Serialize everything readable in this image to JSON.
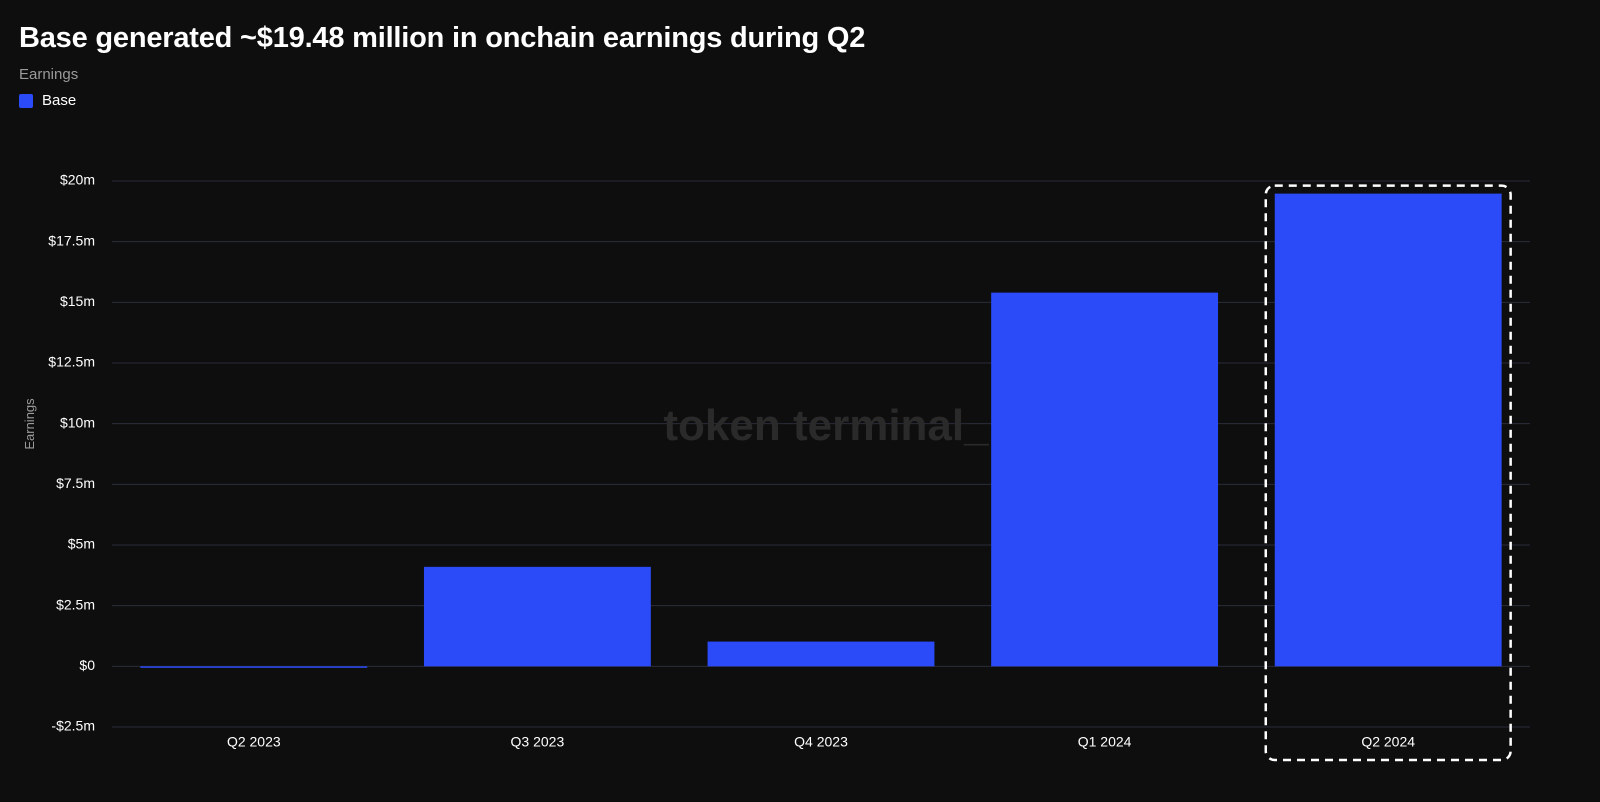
{
  "colors": {
    "background": "#0e0e0e",
    "bar": "#2a4bf7",
    "grid": "#2a2c3a",
    "tick_text": "#ffffff",
    "muted_text": "#9a9a9a",
    "watermark": "#2a2a2a",
    "highlight_box": "#ffffff"
  },
  "watermark": "token terminal_",
  "chart_data": {
    "type": "bar",
    "title": "Base generated ~$19.48 million in onchain earnings during Q2",
    "subtitle": "Earnings",
    "xlabel": "",
    "ylabel": "Earnings",
    "categories": [
      "Q2 2023",
      "Q3 2023",
      "Q4 2023",
      "Q1 2024",
      "Q2 2024"
    ],
    "series": [
      {
        "name": "Base",
        "values": [
          -0.05,
          4.1,
          1.02,
          15.4,
          19.48
        ]
      }
    ],
    "ylim": [
      -2.5,
      20
    ],
    "yticks": [
      {
        "value": 20,
        "label": "$20m"
      },
      {
        "value": 17.5,
        "label": "$17.5m"
      },
      {
        "value": 15,
        "label": "$15m"
      },
      {
        "value": 12.5,
        "label": "$12.5m"
      },
      {
        "value": 10,
        "label": "$10m"
      },
      {
        "value": 7.5,
        "label": "$7.5m"
      },
      {
        "value": 5,
        "label": "$5m"
      },
      {
        "value": 2.5,
        "label": "$2.5m"
      },
      {
        "value": 0,
        "label": "$0"
      },
      {
        "value": -2.5,
        "label": "-$2.5m"
      }
    ],
    "grid": true,
    "legend_position": "top-left",
    "highlight_category": "Q2 2024"
  }
}
